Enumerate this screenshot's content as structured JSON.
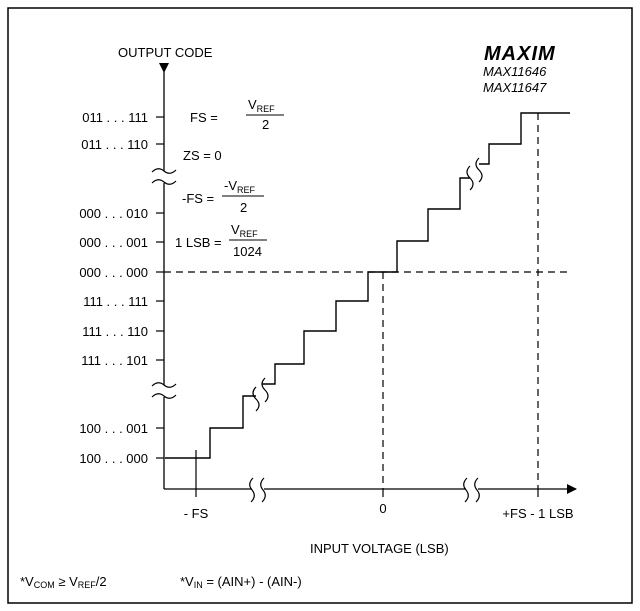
{
  "brand": {
    "logo_text": "MAXIM",
    "part_1": "MAX11646",
    "part_2": "MAX11647"
  },
  "axes": {
    "y_title": "OUTPUT CODE",
    "x_title": "INPUT VOLTAGE (LSB)",
    "x_ticks": {
      "neg_fs": "- FS",
      "zero": "0",
      "pos_fs": "+FS - 1 LSB"
    },
    "y_ticks": [
      "011 . . . 111",
      "011 . . . 110",
      "000 . . . 010",
      "000 . . . 001",
      "000 . . . 000",
      "111 . . . 111",
      "111 . . . 110",
      "111 . . . 101",
      "100 . . . 001",
      "100 . . . 000"
    ]
  },
  "annotations": {
    "fs_lhs": "FS = ",
    "fs_num_v": "V",
    "fs_num_sub": "REF",
    "fs_den": "2",
    "zs": "ZS = 0",
    "neg_fs_lhs": "-FS = ",
    "neg_fs_num_v": "-V",
    "neg_fs_num_sub": "REF",
    "neg_fs_den": "2",
    "lsb_lhs": "1 LSB = ",
    "lsb_num_v": "V",
    "lsb_num_sub": "REF",
    "lsb_den": "1024"
  },
  "footnote": {
    "vcom_star": "*V",
    "vcom_sub": "COM",
    "vcom_ge": " ≥ V",
    "vref_sub": "REF",
    "vref_tail": "/2",
    "vin_star": "*V",
    "vin_sub": "IN",
    "vin_tail": " = (AIN+) - (AIN-)"
  }
}
